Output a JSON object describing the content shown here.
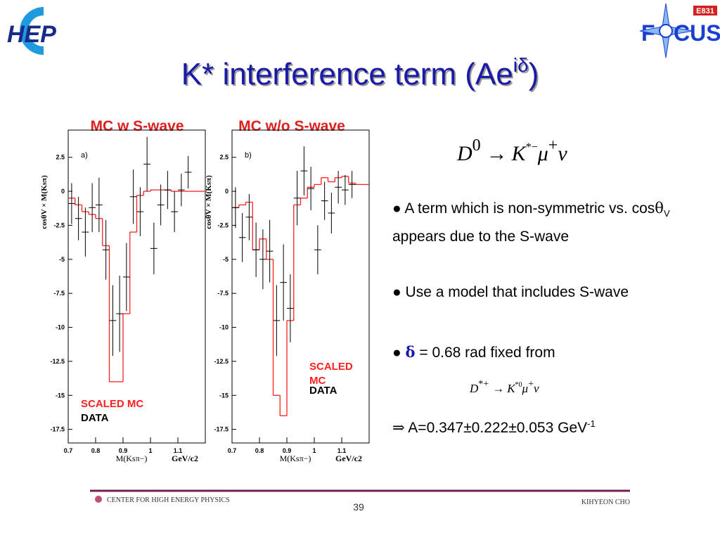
{
  "slide": {
    "logo_left": "HEP",
    "logo_right": {
      "tag": "E831",
      "name_start": "F",
      "name_end": "CUS"
    },
    "title": {
      "main": "K* interference term (Ae",
      "sup": "iδ",
      "end": ")"
    },
    "equation": {
      "d": "D",
      "d_sup": "0",
      "arrow": "→",
      "k": "K",
      "k_sup": "*−",
      "mu": "μ",
      "mu_sup": "+",
      "nu": "ν"
    },
    "bullets": [
      [
        "A term which is non-symmetric vs. cos",
        "θ",
        "V",
        " appears due to the S-wave"
      ],
      [
        "Use a model that includes S-wave"
      ],
      [
        "δ",
        " = 0.68  rad  fixed from"
      ]
    ],
    "equation2": {
      "d": "D",
      "d_sup": "*+",
      "arrow": "→",
      "k": "K",
      "k_sup": "*0",
      "mu": "μ",
      "mu_sup": "+",
      "nu": "ν"
    },
    "result": {
      "arrow": "⇒",
      "text": "A=0.347±0.222±0.053 GeV",
      "sup": "-1"
    },
    "footer": {
      "org": "CENTER FOR HIGH ENERGY PHYSICS",
      "page": "39",
      "author": "KIHYEON CHO"
    }
  },
  "chart_data": [
    {
      "type": "histogram",
      "title": "MC w S-wave",
      "panel_label": "a)",
      "x_label": "M(Ksπ−)",
      "x_unit": "GeV/c2",
      "y_label": "cosθV × M(Ksπ)",
      "bins": [
        0.7,
        0.725,
        0.75,
        0.775,
        0.8,
        0.825,
        0.85,
        0.875,
        0.9,
        0.925,
        0.95,
        0.975,
        1,
        1.025,
        1.05,
        1.075,
        1.1,
        1.125,
        1.15,
        1.175,
        1.2
      ],
      "series": [
        {
          "name": "DATA",
          "color": "#000000",
          "values": [
            -0.9,
            -2,
            -3,
            -1.2,
            -1,
            -4.3,
            -9.5,
            -9,
            -6.3,
            -0.4,
            -1.5,
            2,
            -4.2,
            -1,
            0.1,
            -1.5,
            0.1,
            1.4,
            null,
            null
          ],
          "errors": [
            1.5,
            1.6,
            1.8,
            1.8,
            2,
            2.2,
            2.6,
            2.8,
            2.5,
            2,
            1.8,
            2,
            1.9,
            1.5,
            1.4,
            1.5,
            1.2,
            1.2,
            null,
            null
          ]
        },
        {
          "name": "SCALED MC",
          "color": "#ff2020",
          "values": [
            -0.5,
            -1,
            -1.5,
            -1.7,
            -2,
            -4,
            -14,
            -14,
            -9,
            -3,
            -0.3,
            0,
            0.1,
            0.1,
            0.1,
            0,
            0,
            0,
            0,
            0
          ]
        }
      ],
      "xlim": [
        0.7,
        1.2
      ],
      "ylim": [
        -18.5,
        4.5
      ],
      "xticks": [
        0.7,
        0.8,
        0.9,
        1,
        1.1
      ],
      "yticks": [
        2.5,
        0,
        -2.5,
        -5,
        -7.5,
        -10,
        -12.5,
        -15,
        -17.5
      ],
      "legend": "lower left"
    },
    {
      "type": "histogram",
      "title": "MC w/o S-wave",
      "panel_label": "b)",
      "x_label": "M(Ksπ−)",
      "x_unit": "GeV/c2",
      "y_label": "cosθV × M(Ksπ)",
      "bins": [
        0.7,
        0.725,
        0.75,
        0.775,
        0.8,
        0.825,
        0.85,
        0.875,
        0.9,
        0.925,
        0.95,
        0.975,
        1,
        1.025,
        1.05,
        1.075,
        1.1,
        1.125,
        1.15,
        1.175,
        1.2
      ],
      "series": [
        {
          "name": "DATA",
          "color": "#000000",
          "values": [
            -1.2,
            -3.4,
            -1.9,
            -4.3,
            -5,
            -4.4,
            -9.5,
            -6.7,
            -8.6,
            -0.5,
            1.5,
            0.2,
            -4.3,
            -0.7,
            -1.6,
            0.3,
            0.1,
            0.5,
            null,
            null
          ],
          "errors": [
            1.5,
            1.8,
            1.7,
            2,
            2.2,
            2.3,
            2.6,
            2.8,
            2.5,
            2,
            1.8,
            1.6,
            1.8,
            1.4,
            1.5,
            1.2,
            1.1,
            1,
            null,
            null
          ]
        },
        {
          "name": "SCALED MC",
          "color": "#ff2020",
          "values": [
            -1.2,
            -1,
            -0.8,
            -4.3,
            -3.5,
            -5,
            -15,
            -16.5,
            -9.5,
            -1,
            -0.5,
            0.3,
            0.5,
            1,
            0.7,
            1,
            1.1,
            0.6,
            0.5,
            0.5
          ]
        }
      ],
      "xlim": [
        0.7,
        1.2
      ],
      "ylim": [
        -18.5,
        4.5
      ],
      "xticks": [
        0.7,
        0.8,
        0.9,
        1,
        1.1
      ],
      "yticks": [
        2.5,
        0,
        -2.5,
        -5,
        -7.5,
        -10,
        -12.5,
        -15,
        -17.5
      ],
      "legend": "lower right"
    }
  ]
}
